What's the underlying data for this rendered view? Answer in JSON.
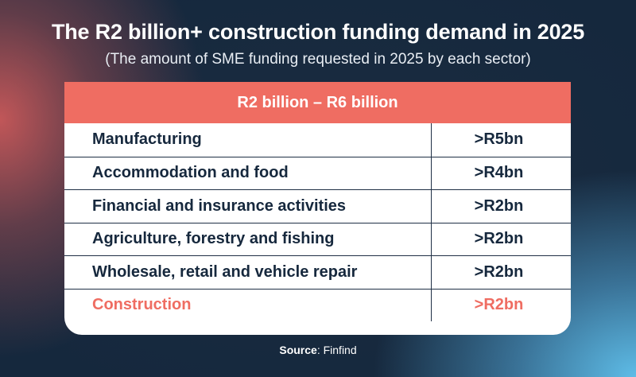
{
  "title": "The R2 billion+ construction funding demand in 2025",
  "subtitle": "(The amount of SME funding requested in 2025 by each sector)",
  "chart_data": {
    "type": "table",
    "header": "R2 billion – R6 billion",
    "rows": [
      {
        "sector": "Manufacturing",
        "value": ">R5bn"
      },
      {
        "sector": "Accommodation and food",
        "value": ">R4bn"
      },
      {
        "sector": "Financial and insurance activities",
        "value": ">R2bn"
      },
      {
        "sector": "Agriculture, forestry and fishing",
        "value": ">R2bn"
      },
      {
        "sector": "Wholesale, retail and vehicle repair",
        "value": ">R2bn"
      },
      {
        "sector": "Construction",
        "value": ">R2bn",
        "highlight": true
      }
    ],
    "highlight_color": "#ef6d62",
    "header_color": "#ef6d62"
  },
  "source": {
    "label": "Source",
    "text": ": Finfind"
  }
}
